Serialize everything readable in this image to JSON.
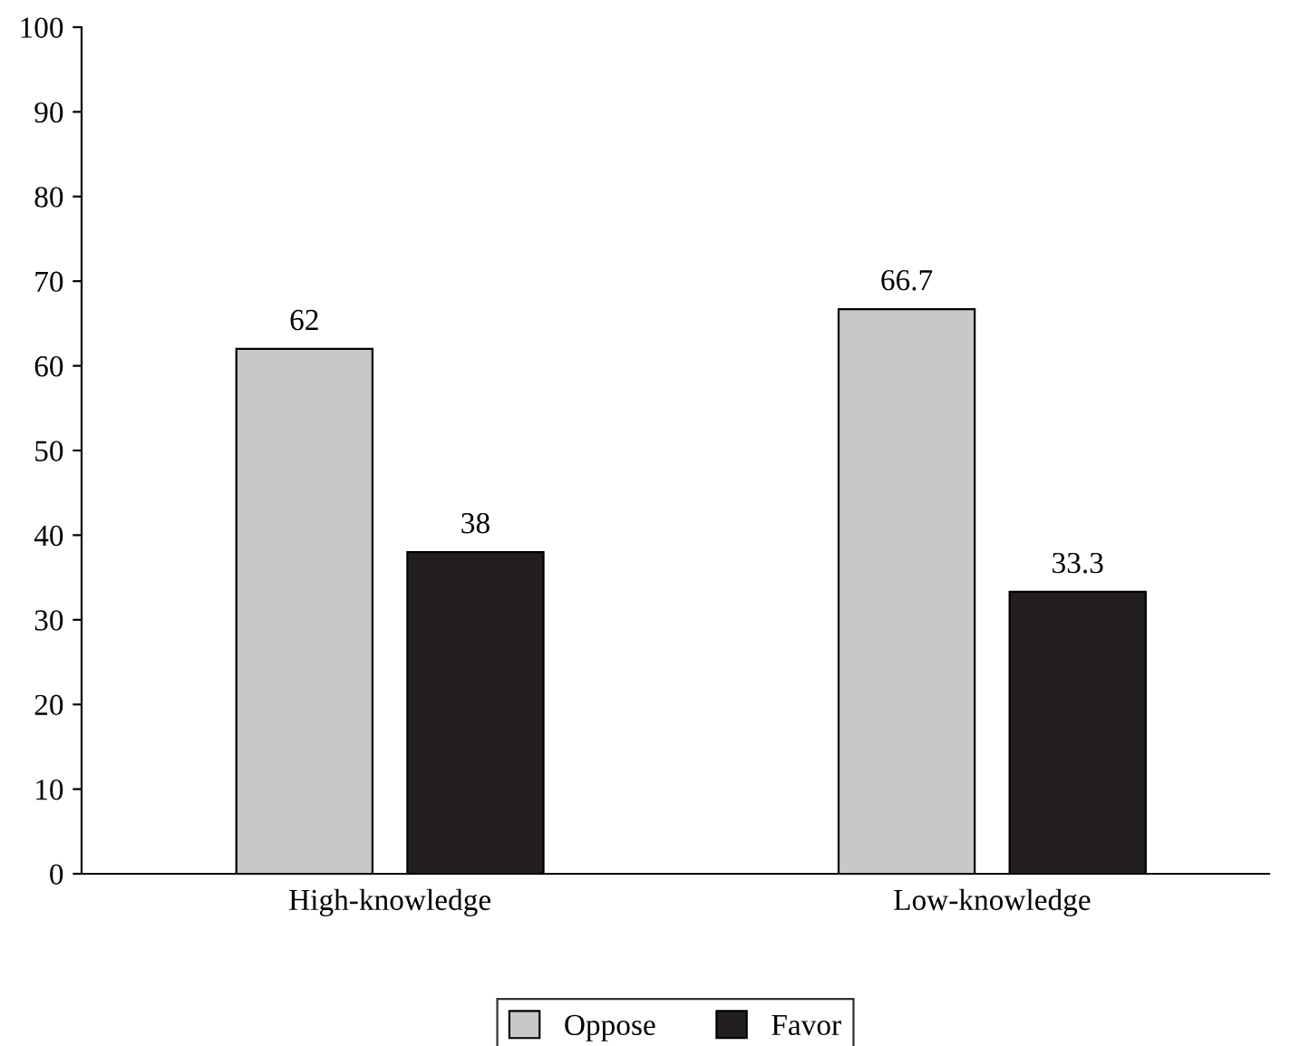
{
  "chart_data": {
    "type": "bar",
    "categories": [
      "High-knowledge",
      "Low-knowledge"
    ],
    "series": [
      {
        "name": "Oppose",
        "color": "#c8c8c8",
        "values": [
          62,
          66.7
        ]
      },
      {
        "name": "Favor",
        "color": "#231f20",
        "values": [
          38,
          33.3
        ]
      }
    ],
    "ylim": [
      0,
      100
    ],
    "yticks": [
      0,
      10,
      20,
      30,
      40,
      50,
      60,
      70,
      80,
      90,
      100
    ],
    "data_labels": true,
    "legend": "bottom",
    "grid": false
  }
}
